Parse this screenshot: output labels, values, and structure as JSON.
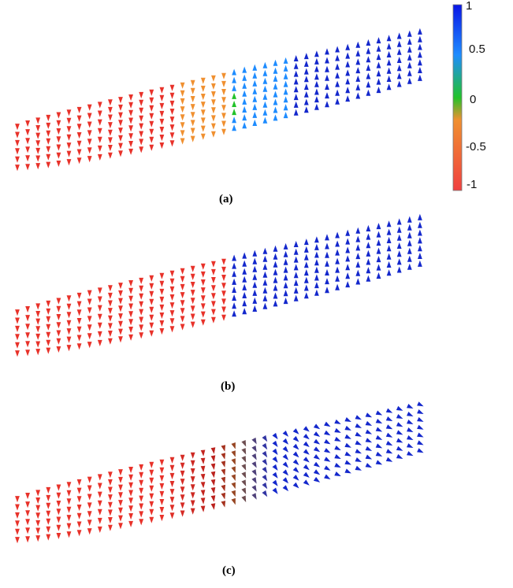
{
  "panels": [
    {
      "caption": "(a)",
      "mode": "smooth"
    },
    {
      "caption": "(b)",
      "mode": "sharp"
    },
    {
      "caption": "(c)",
      "mode": "rotate"
    }
  ],
  "colorbar": {
    "ticks": [
      "1",
      "0.5",
      "0",
      "-0.5",
      "-1"
    ],
    "colors": {
      "top": "#0a16e6",
      "upper": "#1e8cff",
      "middle": "#22c22a",
      "lower": "#f09030",
      "bottom": "#f04040"
    }
  },
  "arrow_colors": {
    "red": "#e8322a",
    "blue": "#1428cc",
    "darkred": "#b21e1a",
    "brown": "#8a5a28"
  }
}
